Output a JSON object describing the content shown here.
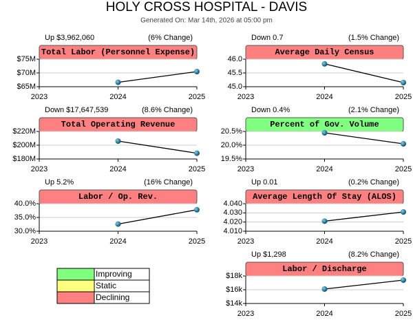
{
  "header": {
    "title": "HOLY CROSS HOSPITAL - DAVIS",
    "subtitle": "Generated On: Mar 14th, 2026 at 05:00 pm"
  },
  "chart_data": [
    {
      "type": "line",
      "title": "Total Labor (Personnel Expense)",
      "summary": "Up $3,962,060",
      "change": "(6% Change)",
      "title_color": "#ff8080",
      "categories": [
        "2023",
        "2024",
        "2025"
      ],
      "values": [
        null,
        66.6,
        70.5
      ],
      "ylim": [
        65,
        75
      ],
      "yticks": [
        {
          "value": 65,
          "label": "$65M"
        },
        {
          "value": 70,
          "label": "$70M"
        },
        {
          "value": 75,
          "label": "$75M"
        }
      ]
    },
    {
      "type": "line",
      "title": "Average Daily Census",
      "summary": "Down 0.7",
      "change": "(1.5% Change)",
      "title_color": "#ff8080",
      "categories": [
        "2023",
        "2024",
        "2025"
      ],
      "values": [
        null,
        45.83,
        45.15
      ],
      "ylim": [
        45,
        46
      ],
      "yticks": [
        {
          "value": 45,
          "label": "45.0"
        },
        45.5,
        {
          "value": 46,
          "label": "46.0"
        }
      ]
    },
    {
      "type": "line",
      "title": "Total Operating Revenue",
      "summary": "Down $17,647,539",
      "change": "(8.6% Change)",
      "title_color": "#ff8080",
      "categories": [
        "2023",
        "2024",
        "2025"
      ],
      "values": [
        null,
        206,
        188.4
      ],
      "ylim": [
        180,
        220
      ],
      "yticks": [
        {
          "value": 180,
          "label": "$180M"
        },
        {
          "value": 200,
          "label": "$200M"
        },
        {
          "value": 220,
          "label": "$220M"
        }
      ]
    },
    {
      "type": "line",
      "title": "Percent of Gov. Volume",
      "summary": "Down 0.4%",
      "change": "(2.1% Change)",
      "title_color": "#80ff80",
      "categories": [
        "2023",
        "2024",
        "2025"
      ],
      "values": [
        null,
        20.45,
        20.05
      ],
      "ylim": [
        19.5,
        20.5
      ],
      "yticks": [
        {
          "value": 19.5,
          "label": "19.5%"
        },
        {
          "value": 20,
          "label": "20.0%"
        },
        {
          "value": 20.5,
          "label": "20.5%"
        }
      ]
    },
    {
      "type": "line",
      "title": "Labor / Op. Rev.",
      "summary": "Up 5.2%",
      "change": "(16% Change)",
      "title_color": "#ff8080",
      "categories": [
        "2023",
        "2024",
        "2025"
      ],
      "values": [
        null,
        32.6,
        37.8
      ],
      "ylim": [
        30,
        40
      ],
      "yticks": [
        {
          "value": 30,
          "label": "30.0%"
        },
        {
          "value": 35,
          "label": "35.0%"
        },
        {
          "value": 40,
          "label": "40.0%"
        }
      ]
    },
    {
      "type": "line",
      "title": "Average Length Of Stay (ALOS)",
      "summary": "Up 0.01",
      "change": "(0.2% Change)",
      "title_color": "#ff8080",
      "categories": [
        "2023",
        "2024",
        "2025"
      ],
      "values": [
        null,
        4.021,
        4.031
      ],
      "ylim": [
        4.01,
        4.04
      ],
      "yticks": [
        {
          "value": 4.01,
          "label": "4.010"
        },
        {
          "value": 4.02,
          "label": "4.020"
        },
        {
          "value": 4.03,
          "label": "4.030"
        },
        {
          "value": 4.04,
          "label": "4.040"
        }
      ]
    },
    {
      "type": "line",
      "title": "Labor / Discharge",
      "summary": "Up $1,298",
      "change": "(8.2% Change)",
      "title_color": "#ff8080",
      "categories": [
        "2023",
        "2024",
        "2025"
      ],
      "values": [
        null,
        16.1,
        17.4
      ],
      "ylim": [
        14,
        18
      ],
      "yticks": [
        {
          "value": 14,
          "label": "$14k"
        },
        {
          "value": 16,
          "label": "$16k"
        },
        {
          "value": 18,
          "label": "$18k"
        }
      ]
    }
  ],
  "legend": [
    {
      "label": "Improving",
      "color": "#80ff80"
    },
    {
      "label": "Static",
      "color": "#ffff80"
    },
    {
      "label": "Declining",
      "color": "#ff8080"
    }
  ]
}
